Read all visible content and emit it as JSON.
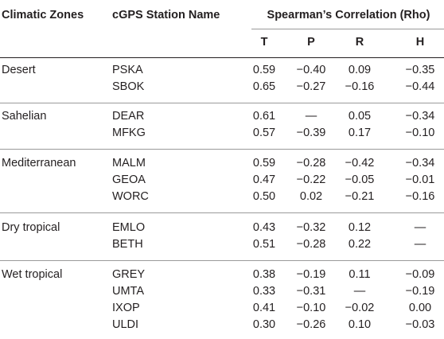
{
  "headers": {
    "zone": "Climatic Zones",
    "station": "cGPS Station Name",
    "spearman": "Spearman’s Correlation (Rho)",
    "t": "T",
    "p": "P",
    "r": "R",
    "h": "H"
  },
  "groups": [
    {
      "zone": "Desert",
      "rows": [
        {
          "station": "PSKA",
          "t": "0.59",
          "p": "−0.40",
          "r": "0.09",
          "h": "−0.35"
        },
        {
          "station": "SBOK",
          "t": "0.65",
          "p": "−0.27",
          "r": "−0.16",
          "h": "−0.44"
        }
      ]
    },
    {
      "zone": "Sahelian",
      "rows": [
        {
          "station": "DEAR",
          "t": "0.61",
          "p": "—",
          "r": "0.05",
          "h": "−0.34"
        },
        {
          "station": "MFKG",
          "t": "0.57",
          "p": "−0.39",
          "r": "0.17",
          "h": "−0.10"
        }
      ]
    },
    {
      "zone": "Mediterranean",
      "rows": [
        {
          "station": "MALM",
          "t": "0.59",
          "p": "−0.28",
          "r": "−0.42",
          "h": "−0.34"
        },
        {
          "station": "GEOA",
          "t": "0.47",
          "p": "−0.22",
          "r": "−0.05",
          "h": "−0.01"
        },
        {
          "station": "WORC",
          "t": "0.50",
          "p": "0.02",
          "r": "−0.21",
          "h": "−0.16"
        }
      ]
    },
    {
      "zone": "Dry tropical",
      "rows": [
        {
          "station": "EMLO",
          "t": "0.43",
          "p": "−0.32",
          "r": "0.12",
          "h": "—"
        },
        {
          "station": "BETH",
          "t": "0.51",
          "p": "−0.28",
          "r": "0.22",
          "h": "—"
        }
      ]
    },
    {
      "zone": "Wet tropical",
      "rows": [
        {
          "station": "GREY",
          "t": "0.38",
          "p": "−0.19",
          "r": "0.11",
          "h": "−0.09"
        },
        {
          "station": "UMTA",
          "t": "0.33",
          "p": "−0.31",
          "r": "—",
          "h": "−0.19"
        },
        {
          "station": "IXOP",
          "t": "0.41",
          "p": "−0.10",
          "r": "−0.02",
          "h": "0.00"
        },
        {
          "station": "ULDI",
          "t": "0.30",
          "p": "−0.26",
          "r": "0.10",
          "h": "−0.03"
        }
      ]
    }
  ]
}
